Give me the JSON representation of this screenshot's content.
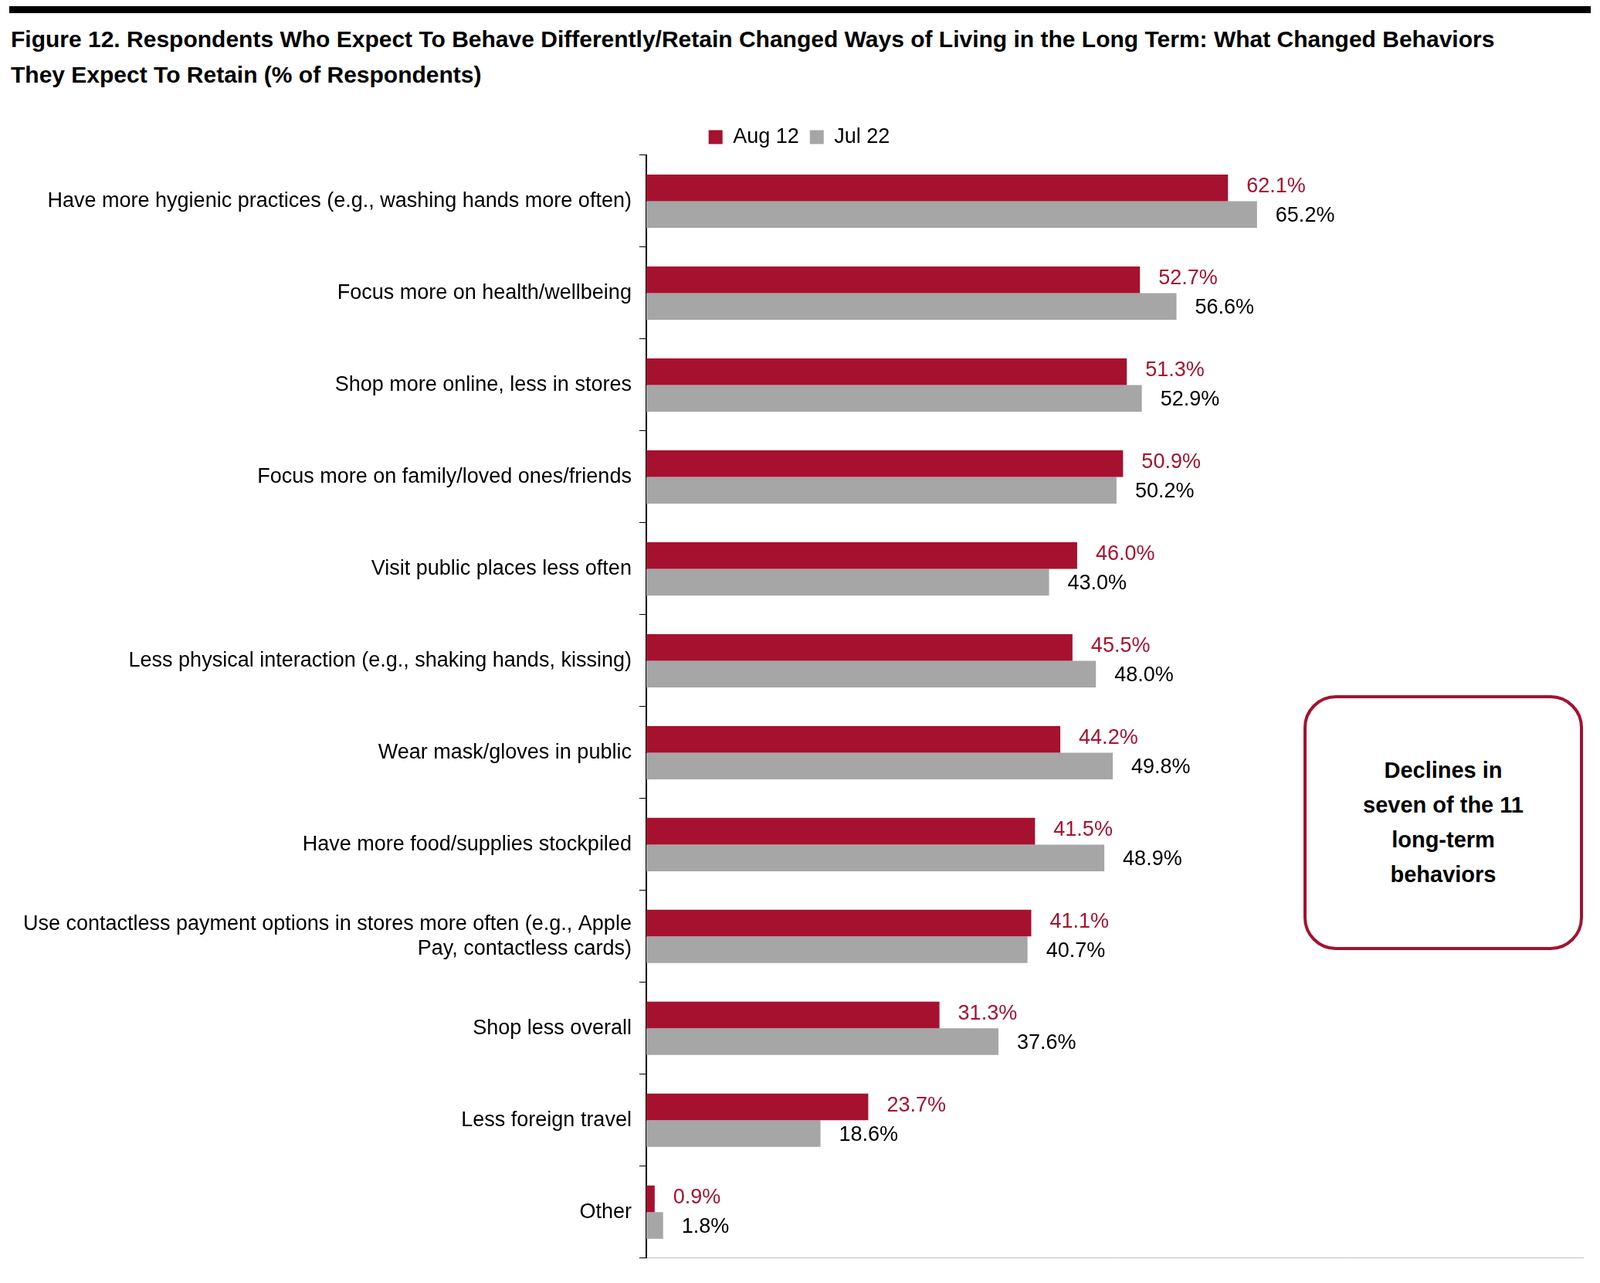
{
  "chart_data": {
    "type": "bar",
    "title": "Figure 12. Respondents Who Expect To Behave Differently/Retain Changed Ways of Living in the Long Term: What Changed Behaviors They Expect To Retain (% of Respondents)",
    "annotation": "Declines in seven of the 11 long-term behaviors",
    "orientation": "horizontal",
    "categories": [
      "Have more hygienic practices (e.g., washing hands more often)",
      "Focus more on health/wellbeing",
      "Shop more online, less in stores",
      "Focus more on family/loved ones/friends",
      "Visit public places less often",
      "Less physical interaction (e.g., shaking hands, kissing)",
      "Wear mask/gloves in public",
      "Have more food/supplies stockpiled",
      "Use contactless payment options in stores more often (e.g., Apple Pay, contactless cards)",
      "Shop less overall",
      "Less foreign travel",
      "Other"
    ],
    "series": [
      {
        "name": "Aug 12",
        "color": "#a6112f",
        "values": [
          62.1,
          52.7,
          51.3,
          50.9,
          46.0,
          45.5,
          44.2,
          41.5,
          41.1,
          31.3,
          23.7,
          0.9
        ],
        "value_labels": [
          "62.1%",
          "52.7%",
          "51.3%",
          "50.9%",
          "46.0%",
          "45.5%",
          "44.2%",
          "41.5%",
          "41.1%",
          "31.3%",
          "23.7%",
          "0.9%"
        ]
      },
      {
        "name": "Jul 22",
        "color": "#a6a6a6",
        "values": [
          65.2,
          56.6,
          52.9,
          50.2,
          43.0,
          48.0,
          49.8,
          48.9,
          40.7,
          37.6,
          18.6,
          1.8
        ],
        "value_labels": [
          "65.2%",
          "56.6%",
          "52.9%",
          "50.2%",
          "43.0%",
          "48.0%",
          "49.8%",
          "48.9%",
          "40.7%",
          "37.6%",
          "18.6%",
          "1.8%"
        ]
      }
    ],
    "xlim": [
      0,
      100
    ],
    "grid": false,
    "legend": "top",
    "data_labels": true,
    "tick_labels": "y"
  }
}
